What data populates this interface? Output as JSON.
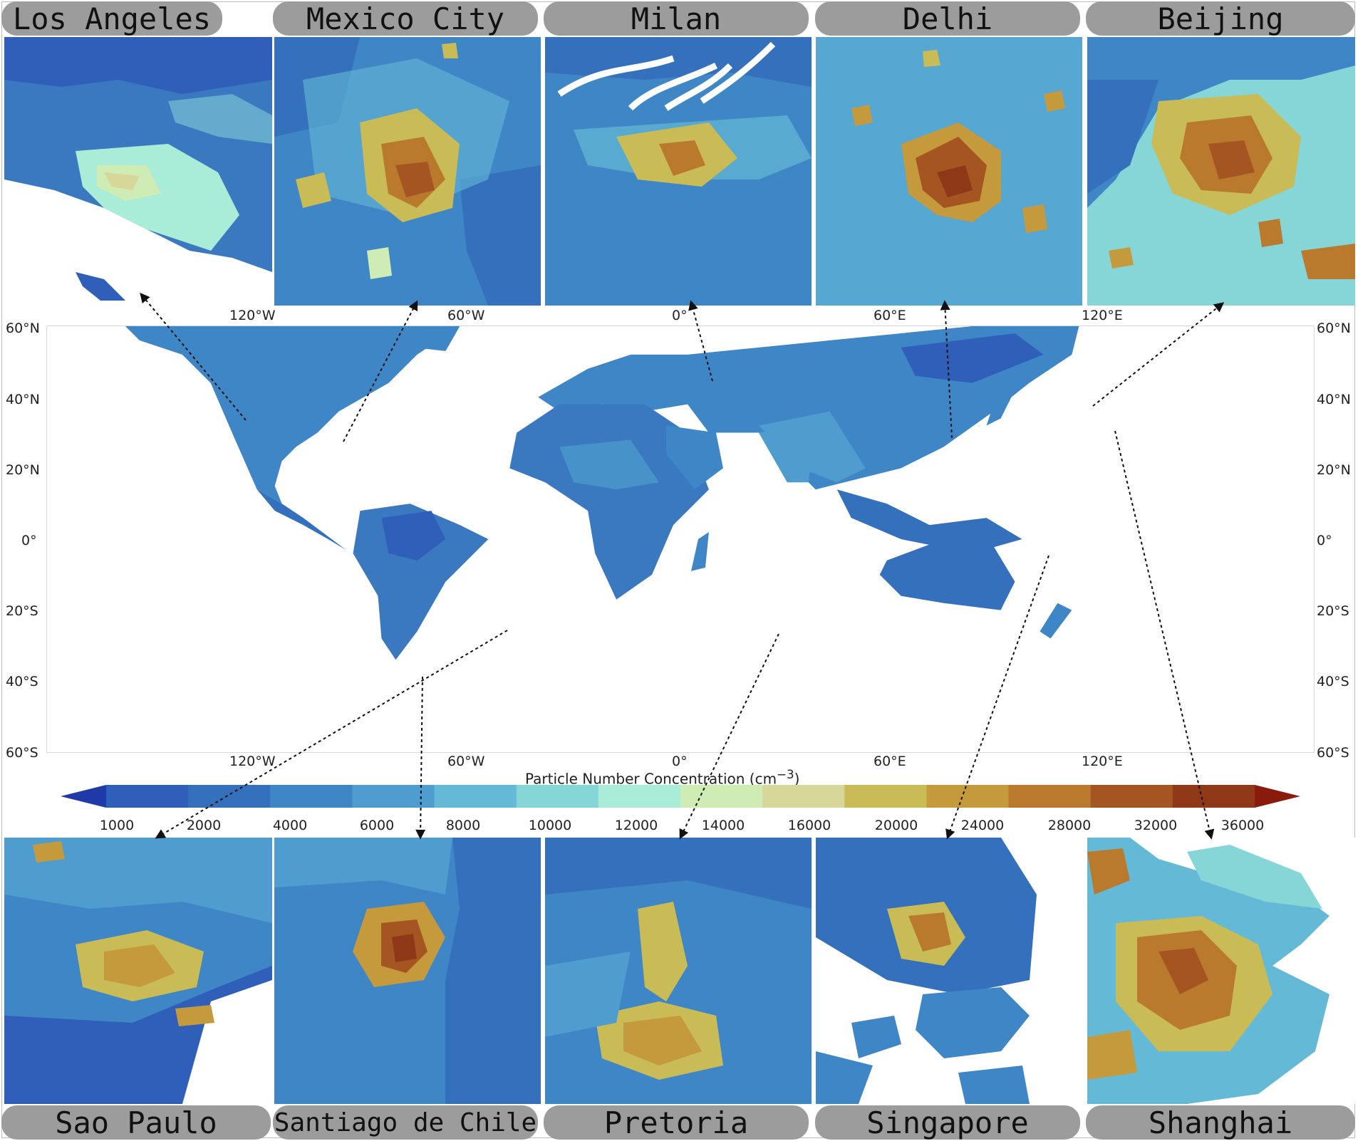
{
  "top_panels": [
    {
      "label": "Los Angeles"
    },
    {
      "label": "Mexico City"
    },
    {
      "label": "Milan"
    },
    {
      "label": "Delhi"
    },
    {
      "label": "Beijing"
    }
  ],
  "bottom_panels": [
    {
      "label": "Sao Paulo"
    },
    {
      "label": "Santiago de Chile"
    },
    {
      "label": "Pretoria"
    },
    {
      "label": "Singapore"
    },
    {
      "label": "Shanghai"
    }
  ],
  "map": {
    "lon_ticks": [
      "120°W",
      "60°W",
      "0°",
      "60°E",
      "120°E"
    ],
    "lat_ticks": [
      "60°N",
      "40°N",
      "20°N",
      "0°",
      "20°S",
      "40°S",
      "60°S"
    ]
  },
  "colorbar": {
    "title": "Particle Number Concentration (cm",
    "title_sup": "−3",
    "title_end": ")",
    "ticks": [
      "1000",
      "2000",
      "4000",
      "6000",
      "8000",
      "10000",
      "12000",
      "14000",
      "16000",
      "20000",
      "24000",
      "28000",
      "32000",
      "36000"
    ],
    "colors": [
      "#2f5fb8",
      "#3470bb",
      "#3f86c6",
      "#4f9dcf",
      "#64b9d6",
      "#86d6d8",
      "#a9ecd8",
      "#cfecb4",
      "#d8d79a",
      "#c9bb56",
      "#c49a3d",
      "#b97a2e",
      "#a45522",
      "#8f3818"
    ],
    "extend_low": "#1f3aa8",
    "extend_high": "#8a1a0c"
  }
}
